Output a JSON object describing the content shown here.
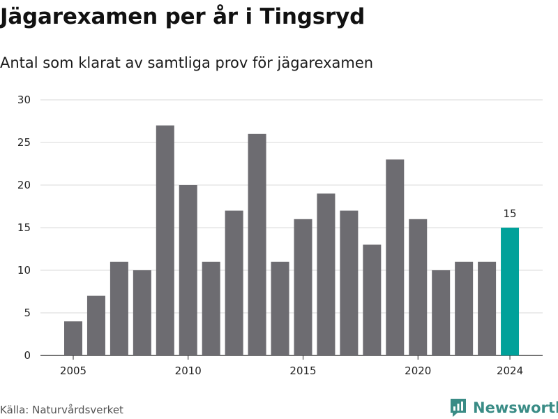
{
  "header": {
    "title": "Jägarexamen per år i Tingsryd",
    "subtitle": "Antal som klarat av samtliga prov för jägarexamen"
  },
  "footer": {
    "source": "Källa: Naturvårdsverket",
    "brand": "Newsworthy"
  },
  "colors": {
    "bar": "#6d6c71",
    "highlight": "#00a19a",
    "grid": "#d9d9d9",
    "brand": "#3a8c86"
  },
  "chart_data": {
    "type": "bar",
    "title": "Jägarexamen per år i Tingsryd",
    "subtitle": "Antal som klarat av samtliga prov för jägarexamen",
    "xlabel": "",
    "ylabel": "",
    "categories": [
      2005,
      2006,
      2007,
      2008,
      2009,
      2010,
      2011,
      2012,
      2013,
      2014,
      2015,
      2016,
      2017,
      2018,
      2019,
      2020,
      2021,
      2022,
      2023,
      2024
    ],
    "values": [
      4,
      7,
      11,
      10,
      27,
      20,
      11,
      17,
      26,
      11,
      16,
      19,
      17,
      13,
      23,
      16,
      10,
      11,
      11,
      15
    ],
    "x_tick_labels": [
      "2005",
      "2010",
      "2015",
      "2020",
      "2024"
    ],
    "y_ticks": [
      0,
      5,
      10,
      15,
      20,
      25,
      30
    ],
    "ylim": [
      0,
      30
    ],
    "highlight_category": 2024,
    "highlight_label": "15",
    "grid": true,
    "legend": "none"
  }
}
